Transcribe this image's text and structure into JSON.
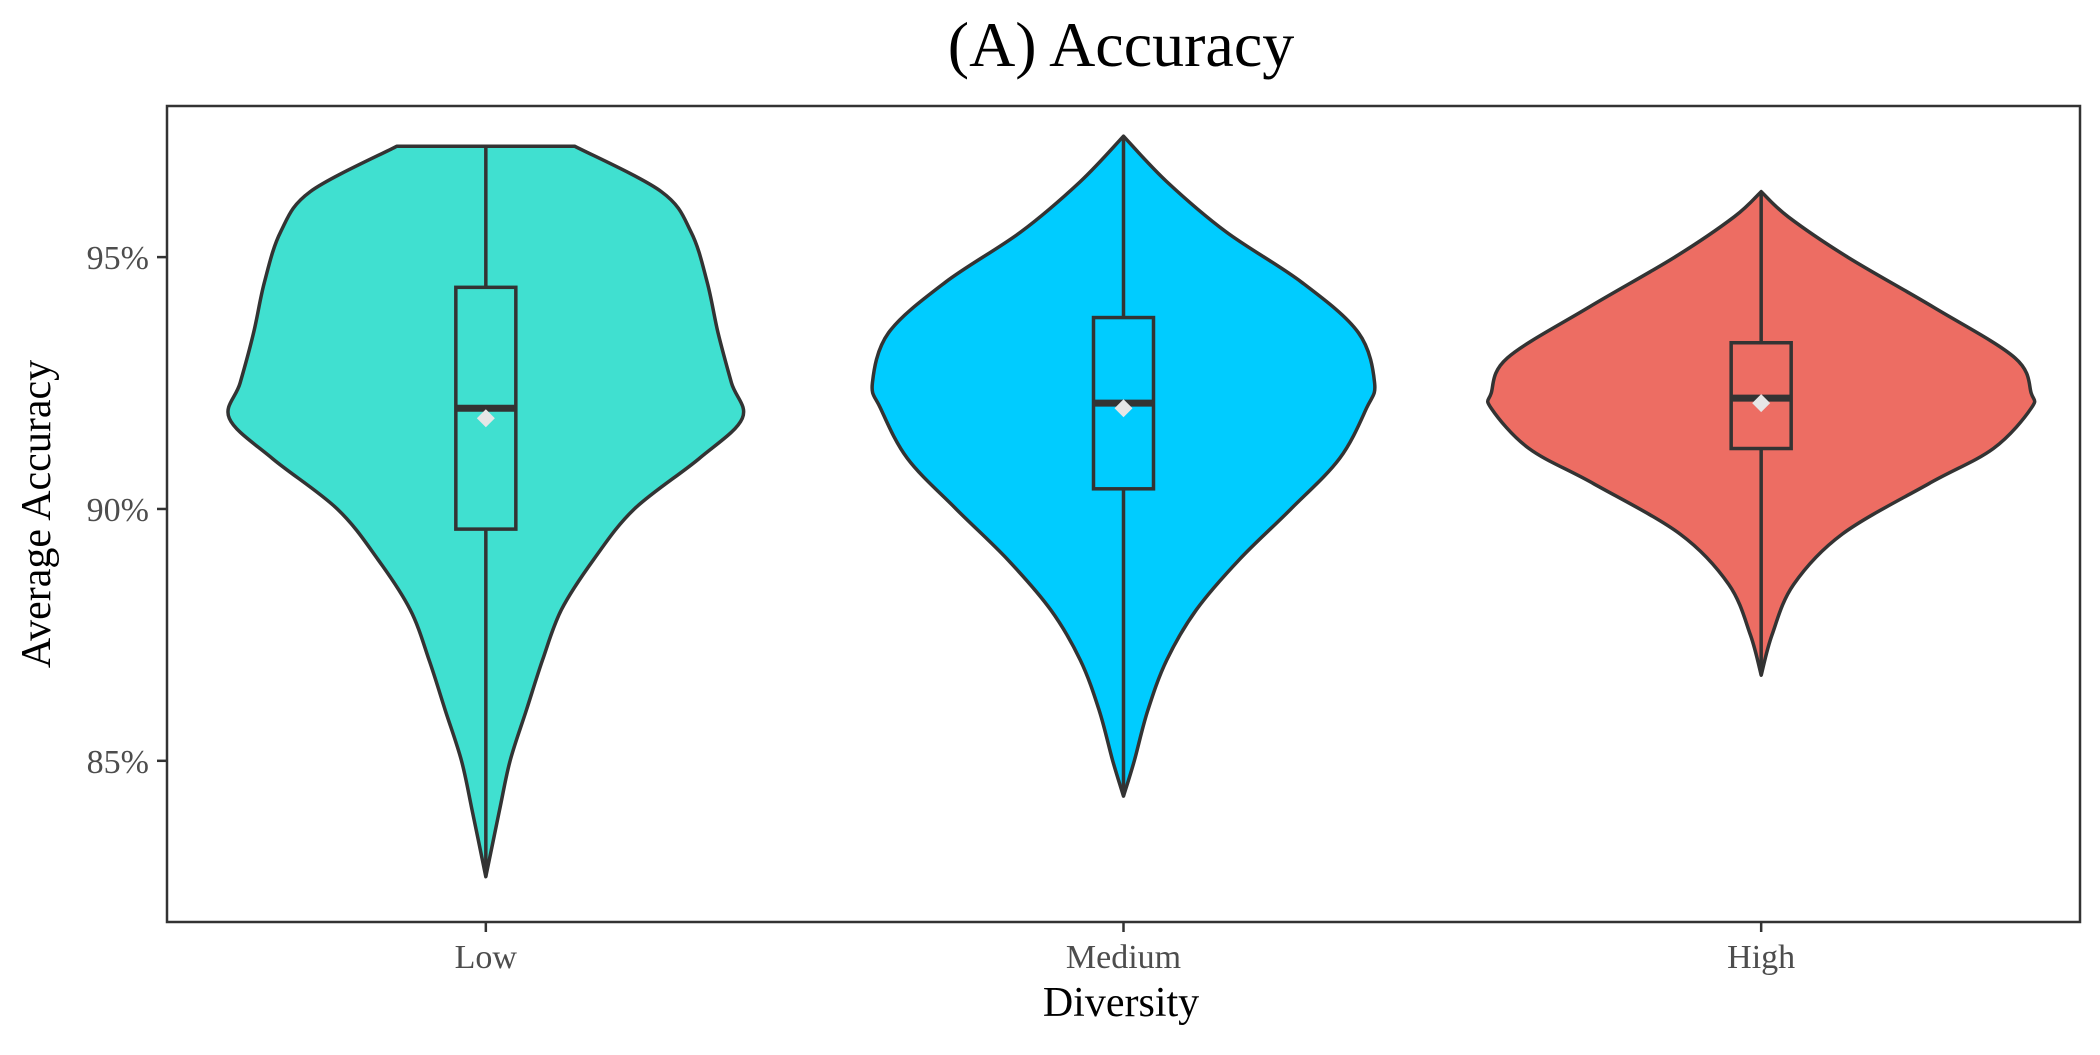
{
  "chart_data": {
    "type": "violin",
    "title": "(A) Accuracy",
    "xlabel": "Diversity",
    "ylabel": "Average Accuracy",
    "categories": [
      "Low",
      "Medium",
      "High"
    ],
    "ylim": [
      81.8,
      98.0
    ],
    "yticks": [
      85,
      90,
      95
    ],
    "ytick_labels": [
      "85%",
      "90%",
      "95%"
    ],
    "grid": false,
    "legend": "none",
    "groups": [
      {
        "name": "Low",
        "color": "#40E0D0",
        "min": 82.7,
        "q1": 89.6,
        "median": 92.0,
        "mean": 91.8,
        "q3": 94.4,
        "max": 97.2,
        "density": [
          [
            82.7,
            0.0
          ],
          [
            84.0,
            0.05
          ],
          [
            85.0,
            0.09
          ],
          [
            86.0,
            0.15
          ],
          [
            87.0,
            0.21
          ],
          [
            88.0,
            0.28
          ],
          [
            89.0,
            0.4
          ],
          [
            90.0,
            0.55
          ],
          [
            91.0,
            0.79
          ],
          [
            91.8,
            0.95
          ],
          [
            92.5,
            0.91
          ],
          [
            93.5,
            0.86
          ],
          [
            94.5,
            0.82
          ],
          [
            95.5,
            0.76
          ],
          [
            96.3,
            0.65
          ],
          [
            97.2,
            0.33
          ]
        ]
      },
      {
        "name": "Medium",
        "color": "#00CCFF",
        "min": 84.3,
        "q1": 90.4,
        "median": 92.1,
        "mean": 92.0,
        "q3": 93.8,
        "max": 97.4,
        "density": [
          [
            84.3,
            0.0
          ],
          [
            85.0,
            0.04
          ],
          [
            86.0,
            0.09
          ],
          [
            87.0,
            0.16
          ],
          [
            88.0,
            0.27
          ],
          [
            89.0,
            0.43
          ],
          [
            90.0,
            0.62
          ],
          [
            91.0,
            0.8
          ],
          [
            92.0,
            0.9
          ],
          [
            92.5,
            0.93
          ],
          [
            93.5,
            0.87
          ],
          [
            94.5,
            0.66
          ],
          [
            95.5,
            0.38
          ],
          [
            96.5,
            0.16
          ],
          [
            97.4,
            0.0
          ]
        ]
      },
      {
        "name": "High",
        "color": "#ED6D63",
        "min": 86.7,
        "q1": 91.2,
        "median": 92.2,
        "mean": 92.1,
        "q3": 93.3,
        "max": 96.3,
        "density": [
          [
            86.7,
            0.0
          ],
          [
            87.5,
            0.04
          ],
          [
            88.5,
            0.12
          ],
          [
            89.5,
            0.3
          ],
          [
            90.5,
            0.62
          ],
          [
            91.2,
            0.86
          ],
          [
            92.0,
            1.0
          ],
          [
            92.3,
            1.0
          ],
          [
            93.0,
            0.94
          ],
          [
            94.0,
            0.64
          ],
          [
            95.0,
            0.32
          ],
          [
            95.8,
            0.1
          ],
          [
            96.3,
            0.0
          ]
        ]
      }
    ]
  }
}
